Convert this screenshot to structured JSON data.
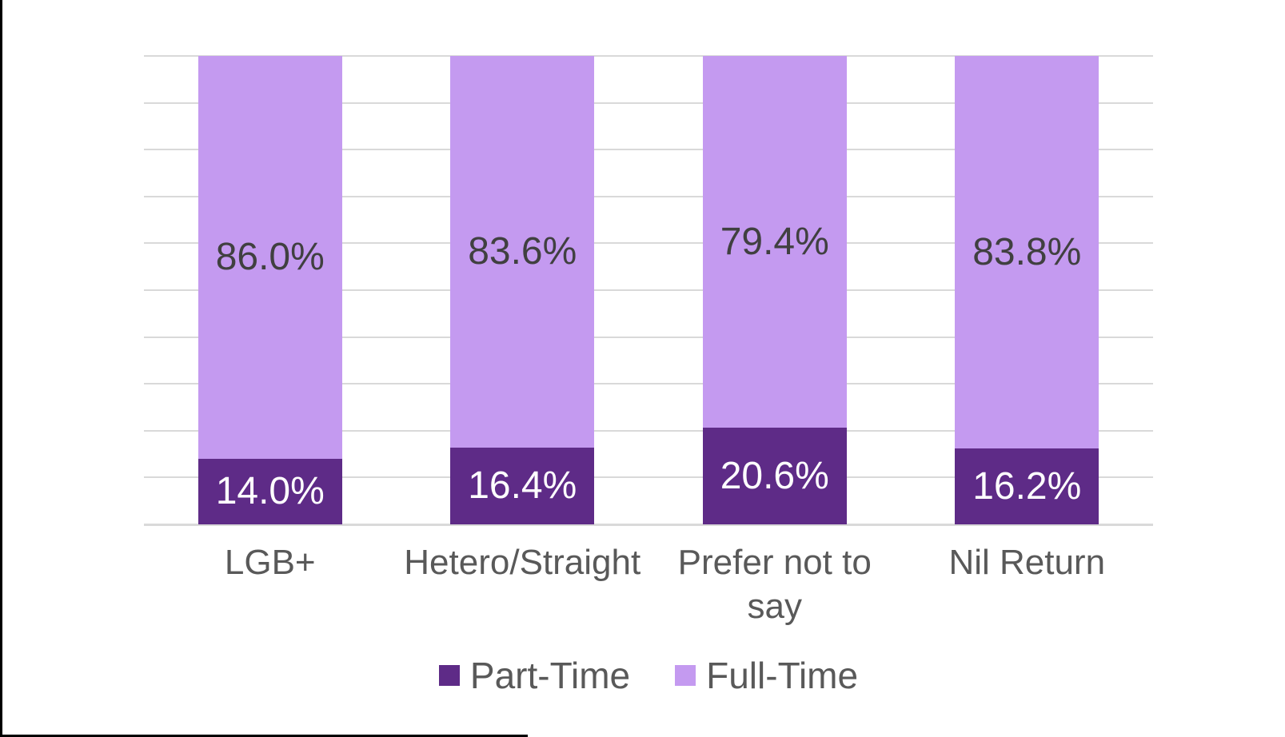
{
  "chart_data": {
    "type": "bar",
    "subtype": "stacked-100-percent-column",
    "title": "",
    "xlabel": "",
    "ylabel": "",
    "categories": [
      "LGB+",
      "Hetero/Straight",
      "Prefer not to say",
      "Nil Return"
    ],
    "series": [
      {
        "name": "Part-Time",
        "color": "#5e2b87",
        "label_color": "#ffffff",
        "values": [
          14.0,
          16.4,
          20.6,
          16.2
        ],
        "labels": [
          "14.0%",
          "16.4%",
          "20.6%",
          "16.2%"
        ]
      },
      {
        "name": "Full-Time",
        "color": "#c49af0",
        "label_color": "#404040",
        "values": [
          86.0,
          83.6,
          79.4,
          83.8
        ],
        "labels": [
          "86.0%",
          "83.6%",
          "79.4%",
          "83.8%"
        ]
      }
    ],
    "ylim": [
      0,
      100
    ],
    "gridline_step": 10,
    "grid": true,
    "gridline_color": "#d9d9d9",
    "legend_position": "bottom",
    "category_label_color": "#595959",
    "legend_label_color": "#595959"
  }
}
